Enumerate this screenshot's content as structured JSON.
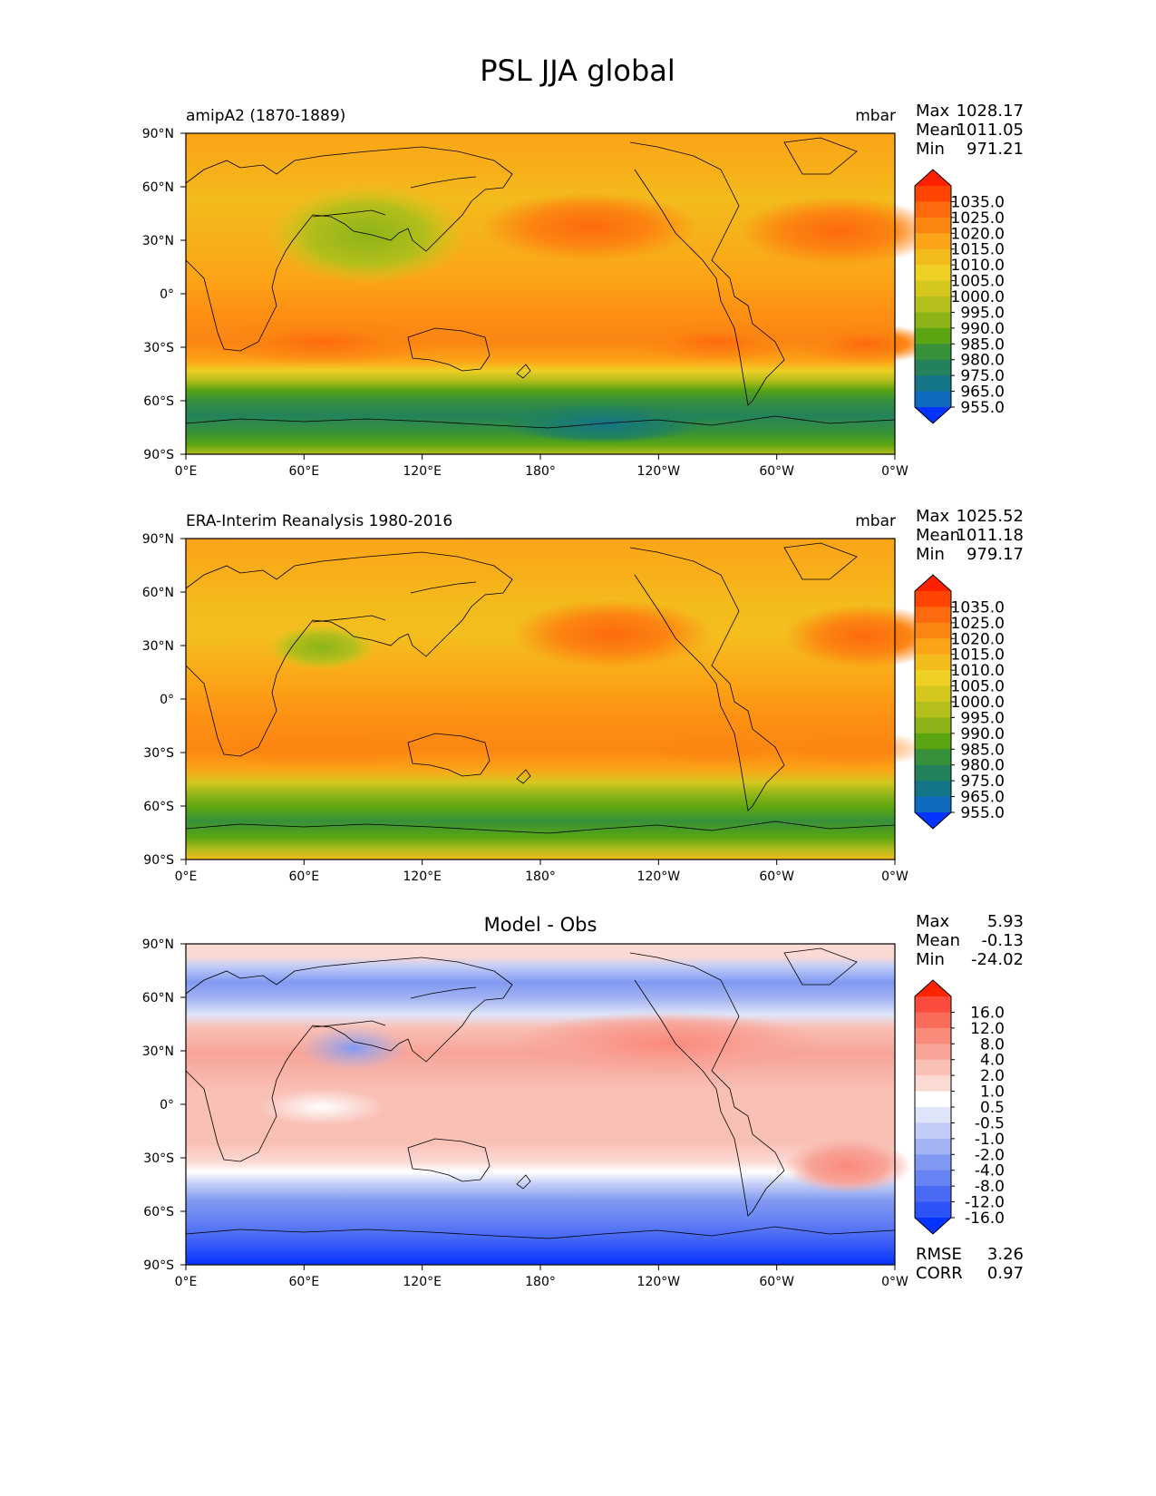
{
  "figure_title": "PSL JJA global",
  "chart_data": [
    {
      "type": "heatmap",
      "panel_id": "model",
      "title": "",
      "left_label": "amipA2 (1870-1889)",
      "units": "mbar",
      "stats": [
        {
          "label": "Max",
          "value": "1028.17"
        },
        {
          "label": "Mean",
          "value": "1011.05"
        },
        {
          "label": "Min",
          "value": "971.21"
        }
      ],
      "x_ticks": [
        "0°E",
        "60°E",
        "120°E",
        "180°",
        "120°W",
        "60°W",
        "0°W"
      ],
      "y_ticks": [
        "90°N",
        "60°N",
        "30°N",
        "0°",
        "30°S",
        "60°S",
        "90°S"
      ],
      "xlim": [
        0,
        360
      ],
      "ylim": [
        -90,
        90
      ],
      "colorbar": {
        "levels": [
          "1035.0",
          "1025.0",
          "1020.0",
          "1015.0",
          "1010.0",
          "1005.0",
          "1000.0",
          "995.0",
          "990.0",
          "985.0",
          "980.0",
          "975.0",
          "965.0",
          "955.0"
        ],
        "colors": [
          "#ff2000",
          "#ff4500",
          "#fd6a0d",
          "#fc8512",
          "#fca417",
          "#f3bb1c",
          "#efd025",
          "#d4c81f",
          "#b4be1c",
          "#8cb418",
          "#5aa511",
          "#37913a",
          "#23825c",
          "#137586",
          "#0f6bbf",
          "#0432ff"
        ]
      },
      "extra_stats": []
    },
    {
      "type": "heatmap",
      "panel_id": "obs",
      "title": "",
      "left_label": "ERA-Interim Reanalysis 1980-2016",
      "units": "mbar",
      "stats": [
        {
          "label": "Max",
          "value": "1025.52"
        },
        {
          "label": "Mean",
          "value": "1011.18"
        },
        {
          "label": "Min",
          "value": "979.17"
        }
      ],
      "x_ticks": [
        "0°E",
        "60°E",
        "120°E",
        "180°",
        "120°W",
        "60°W",
        "0°W"
      ],
      "y_ticks": [
        "90°N",
        "60°N",
        "30°N",
        "0°",
        "30°S",
        "60°S",
        "90°S"
      ],
      "xlim": [
        0,
        360
      ],
      "ylim": [
        -90,
        90
      ],
      "colorbar": {
        "levels": [
          "1035.0",
          "1025.0",
          "1020.0",
          "1015.0",
          "1010.0",
          "1005.0",
          "1000.0",
          "995.0",
          "990.0",
          "985.0",
          "980.0",
          "975.0",
          "965.0",
          "955.0"
        ],
        "colors": [
          "#ff2000",
          "#ff4500",
          "#fd6a0d",
          "#fc8512",
          "#fca417",
          "#f3bb1c",
          "#efd025",
          "#d4c81f",
          "#b4be1c",
          "#8cb418",
          "#5aa511",
          "#37913a",
          "#23825c",
          "#137586",
          "#0f6bbf",
          "#0432ff"
        ]
      },
      "extra_stats": []
    },
    {
      "type": "heatmap",
      "panel_id": "diff",
      "title": "Model - Obs",
      "left_label": "",
      "units": "",
      "stats": [
        {
          "label": "Max",
          "value": "5.93"
        },
        {
          "label": "Mean",
          "value": "-0.13"
        },
        {
          "label": "Min",
          "value": "-24.02"
        }
      ],
      "x_ticks": [
        "0°E",
        "60°E",
        "120°E",
        "180°",
        "120°W",
        "60°W",
        "0°W"
      ],
      "y_ticks": [
        "90°N",
        "60°N",
        "30°N",
        "0°",
        "30°S",
        "60°S",
        "90°S"
      ],
      "xlim": [
        0,
        360
      ],
      "ylim": [
        -90,
        90
      ],
      "colorbar": {
        "levels": [
          "16.0",
          "12.0",
          "8.0",
          "4.0",
          "2.0",
          "1.0",
          "0.5",
          "-0.5",
          "-1.0",
          "-2.0",
          "-4.0",
          "-8.0",
          "-12.0",
          "-16.0"
        ],
        "colors": [
          "#ff2400",
          "#fc4a3c",
          "#fb6b5a",
          "#fa8a7a",
          "#f8a498",
          "#f9c0b6",
          "#fbdad4",
          "#ffffff",
          "#dfe5f9",
          "#c2cdf7",
          "#a3b3f3",
          "#8199f2",
          "#6683f3",
          "#4a6af5",
          "#2c52f8",
          "#0432ff"
        ]
      },
      "extra_stats": [
        {
          "label": "RMSE",
          "value": "3.26"
        },
        {
          "label": "CORR",
          "value": "0.97"
        }
      ]
    }
  ]
}
